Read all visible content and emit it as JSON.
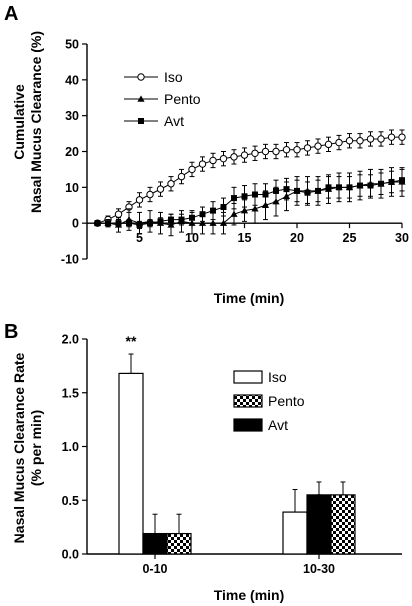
{
  "chart_data": [
    {
      "panel_label": "A",
      "type": "line",
      "title": "",
      "xlabel": "Time (min)",
      "ylabel_lines": [
        "Cumulative",
        "Nasal Mucus Clearance (%)"
      ],
      "xlim": [
        0,
        30
      ],
      "ylim": [
        -10,
        50
      ],
      "xticks": [
        5,
        10,
        15,
        20,
        25,
        30
      ],
      "yticks": [
        -10,
        0,
        10,
        20,
        30,
        40,
        50
      ],
      "grid": false,
      "legend_position": "top-left",
      "series": [
        {
          "name": "Iso",
          "marker": "open-circle",
          "x": [
            1,
            2,
            3,
            4,
            5,
            6,
            7,
            8,
            9,
            10,
            11,
            12,
            13,
            14,
            15,
            16,
            17,
            18,
            19,
            20,
            21,
            22,
            23,
            24,
            25,
            26,
            27,
            28,
            29,
            30
          ],
          "y": [
            0,
            1,
            2.5,
            4.5,
            6.5,
            8,
            9.5,
            11,
            13,
            15,
            16.5,
            17.5,
            18,
            18.5,
            19,
            19.5,
            20,
            20,
            20.5,
            20.5,
            21,
            21.5,
            22,
            22.5,
            23,
            23,
            23.5,
            23.5,
            24,
            24
          ],
          "err": [
            0,
            1,
            1.5,
            1.5,
            2,
            2,
            2,
            2,
            2,
            2,
            2,
            2,
            2,
            2,
            2,
            2,
            2,
            2,
            2,
            2,
            2,
            2,
            2,
            2,
            2,
            2,
            2,
            2,
            2,
            2
          ]
        },
        {
          "name": "Pento",
          "marker": "filled-triangle",
          "x": [
            1,
            2,
            3,
            4,
            5,
            6,
            7,
            8,
            9,
            10,
            11,
            12,
            13,
            14,
            15,
            16,
            17,
            18,
            19,
            20,
            21,
            22,
            23,
            24,
            25,
            26,
            27,
            28,
            29,
            30
          ],
          "y": [
            0,
            0,
            -0.5,
            1,
            0,
            0.5,
            0,
            -0.5,
            0.5,
            0,
            0,
            0,
            0,
            2.5,
            3.5,
            4,
            5,
            6,
            7.5,
            9,
            9,
            9,
            9.5,
            10,
            10,
            10.5,
            11,
            11,
            11.5,
            11.5
          ],
          "err": [
            0,
            1,
            2,
            3,
            3,
            3,
            3,
            3,
            3,
            3,
            3,
            3,
            3,
            3,
            3,
            4,
            4,
            4,
            4,
            4,
            4,
            4,
            4,
            4,
            4,
            4,
            4,
            4,
            4,
            4
          ]
        },
        {
          "name": "Avt",
          "marker": "filled-square",
          "x": [
            1,
            2,
            3,
            4,
            5,
            6,
            7,
            8,
            9,
            10,
            11,
            12,
            13,
            14,
            15,
            16,
            17,
            18,
            19,
            20,
            21,
            22,
            23,
            24,
            25,
            26,
            27,
            28,
            29,
            30
          ],
          "y": [
            0,
            0,
            0,
            0,
            -0.5,
            0,
            0.5,
            1,
            1,
            1.5,
            2.5,
            3.5,
            4.5,
            7,
            7.5,
            8,
            8,
            9,
            9.5,
            9,
            8.5,
            9,
            10,
            10,
            10,
            10.5,
            10.5,
            11,
            11.5,
            12
          ],
          "err": [
            0,
            1,
            1,
            1,
            1,
            1,
            1,
            1.5,
            1.5,
            2,
            2,
            2.5,
            2.5,
            3,
            3,
            3,
            3,
            3,
            3,
            3,
            3,
            3,
            3,
            3,
            3,
            3,
            3,
            3,
            3,
            3
          ]
        }
      ]
    },
    {
      "panel_label": "B",
      "type": "bar",
      "title": "",
      "xlabel": "Time (min)",
      "ylabel_lines": [
        "Nasal Mucus Clearance Rate",
        "(% per min)"
      ],
      "categories": [
        "0-10",
        "10-30"
      ],
      "ylim": [
        0,
        2.0
      ],
      "yticks": [
        0.0,
        0.5,
        1.0,
        1.5,
        2.0
      ],
      "ytick_labels": [
        "0.0",
        "0.5",
        "1.0",
        "1.5",
        "2.0"
      ],
      "grid": false,
      "legend_position": "top-right",
      "series": [
        {
          "name": "Iso",
          "fill": "white",
          "values": [
            1.68,
            0.39
          ],
          "err": [
            0.18,
            0.21
          ]
        },
        {
          "name": "Pento",
          "fill": "checker",
          "values": [
            0.19,
            0.55
          ],
          "err": [
            0.18,
            0.12
          ]
        },
        {
          "name": "Avt",
          "fill": "black",
          "values": [
            0.19,
            0.55
          ],
          "err": [
            0.18,
            0.12
          ]
        }
      ],
      "bar_order": [
        [
          "Iso",
          "Avt",
          "Pento"
        ],
        [
          "Iso",
          "Avt",
          "Pento"
        ]
      ],
      "annotations": [
        {
          "text": "**",
          "category": "0-10",
          "series": "Iso"
        }
      ]
    }
  ]
}
